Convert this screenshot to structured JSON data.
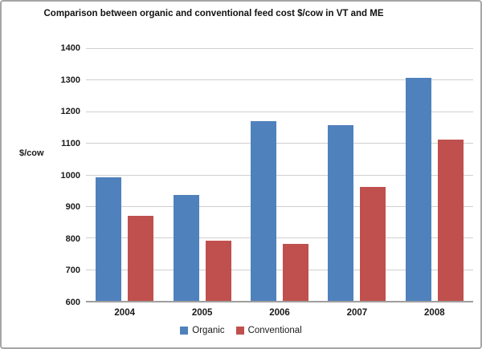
{
  "chart_data": {
    "type": "bar",
    "title": "Comparison between organic and conventional feed cost $/cow in VT and ME",
    "ylabel": "$/cow",
    "xlabel": "",
    "categories": [
      "2004",
      "2005",
      "2006",
      "2007",
      "2008"
    ],
    "series": [
      {
        "name": "Organic",
        "color": "#4f81bd",
        "values": [
          990,
          935,
          1170,
          1155,
          1305
        ]
      },
      {
        "name": "Conventional",
        "color": "#c0504d",
        "values": [
          870,
          790,
          780,
          960,
          1110
        ]
      }
    ],
    "ylim": [
      600,
      1400
    ],
    "ytick_step": 100,
    "grid": true,
    "legend_position": "bottom"
  },
  "colors": {
    "gridline": "#cfcfcf",
    "axis_line": "#9e9e9e",
    "chart_border": "#a6a6a6",
    "text": "#111111"
  }
}
